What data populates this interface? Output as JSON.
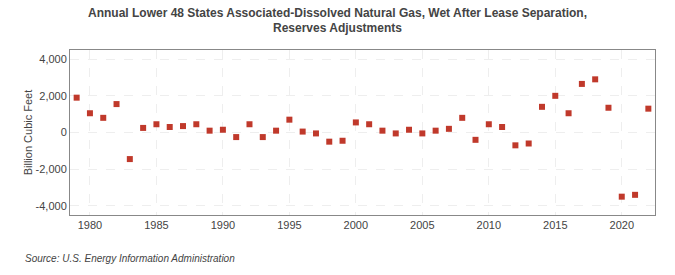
{
  "chart_data": {
    "type": "scatter",
    "title": "Annual Lower 48 States Associated-Dissolved Natural Gas, Wet After Lease Separation,\nReserves Adjustments",
    "ylabel": "Billion Cubic Feet",
    "source": "Source: U.S. Energy Information Administration",
    "color": "#c0392b",
    "marker": "square",
    "grid": true,
    "xlim": [
      1978.5,
      2022.5
    ],
    "ylim": [
      -4500,
      4500
    ],
    "xticks": [
      1980,
      1985,
      1990,
      1995,
      2000,
      2005,
      2010,
      2015,
      2020
    ],
    "yticks": [
      {
        "value": -4000,
        "label": "-4,000"
      },
      {
        "value": -2000,
        "label": "-2,000"
      },
      0,
      {
        "value": 2000,
        "label": "2,000"
      },
      {
        "value": 4000,
        "label": "4,000"
      }
    ],
    "x": [
      1979,
      1980,
      1981,
      1982,
      1983,
      1984,
      1985,
      1986,
      1987,
      1988,
      1989,
      1990,
      1991,
      1992,
      1993,
      1994,
      1995,
      1996,
      1997,
      1998,
      1999,
      2000,
      2001,
      2002,
      2003,
      2004,
      2005,
      2006,
      2007,
      2008,
      2009,
      2010,
      2011,
      2012,
      2013,
      2014,
      2015,
      2016,
      2017,
      2018,
      2019,
      2020,
      2021,
      2022
    ],
    "values": [
      1900,
      1050,
      800,
      1550,
      -1450,
      250,
      450,
      300,
      350,
      450,
      100,
      150,
      -250,
      450,
      -250,
      100,
      700,
      50,
      -50,
      -500,
      -450,
      550,
      450,
      100,
      -50,
      150,
      -50,
      100,
      200,
      800,
      -400,
      450,
      300,
      -700,
      -600,
      1400,
      2000,
      1050,
      2650,
      2900,
      1350,
      -3500,
      -3400,
      1300
    ]
  }
}
